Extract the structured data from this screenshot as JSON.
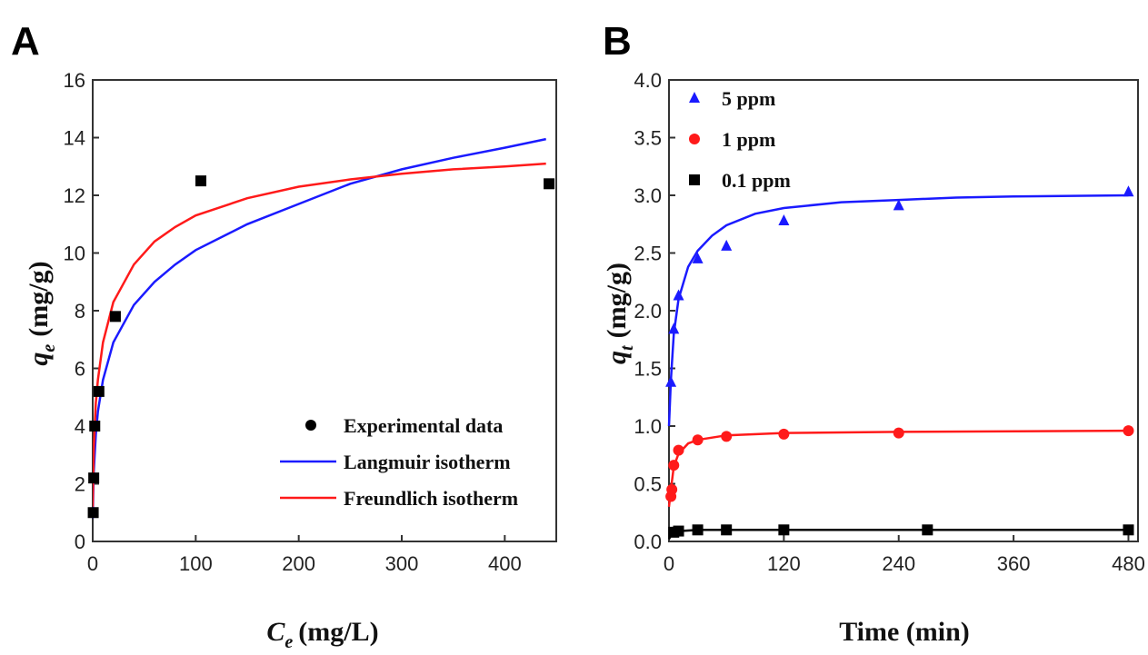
{
  "panel_a": {
    "letter": "A",
    "ylabel_sym": "q",
    "ylabel_sub": "e",
    "ylabel_unit": "(mg/g)",
    "xlabel_sym": "C",
    "xlabel_sub": "e",
    "xlabel_unit": "(mg/L)"
  },
  "panel_b": {
    "letter": "B",
    "ylabel_sym": "q",
    "ylabel_sub": "t",
    "ylabel_unit": "(mg/g)",
    "xlabel": "Time (min)"
  },
  "chart_data": [
    {
      "type": "scatter",
      "panel": "A",
      "xlim": [
        0,
        450
      ],
      "ylim": [
        0,
        16
      ],
      "xticks": [
        "0",
        "100",
        "200",
        "300",
        "400"
      ],
      "xtick_values": [
        0,
        100,
        200,
        300,
        400
      ],
      "yticks": [
        "0",
        "2",
        "4",
        "6",
        "8",
        "10",
        "12",
        "14",
        "16"
      ],
      "ytick_values": [
        0,
        2,
        4,
        6,
        8,
        10,
        12,
        14,
        16
      ],
      "grid": false,
      "legend_position": "bottom-right",
      "series": [
        {
          "name": "Experimental data",
          "kind": "points",
          "marker": "square",
          "color": "#000000",
          "points": [
            [
              0.5,
              1.0
            ],
            [
              1.0,
              2.2
            ],
            [
              2,
              4.0
            ],
            [
              6,
              5.2
            ],
            [
              22,
              7.8
            ],
            [
              105,
              12.5
            ],
            [
              443,
              12.4
            ]
          ]
        },
        {
          "name": "Langmuir isotherm",
          "kind": "curve",
          "color": "#1a1aff",
          "points": [
            [
              0,
              0.8
            ],
            [
              1,
              2.4
            ],
            [
              3,
              3.7
            ],
            [
              5,
              4.5
            ],
            [
              10,
              5.6
            ],
            [
              20,
              6.9
            ],
            [
              40,
              8.2
            ],
            [
              60,
              9.0
            ],
            [
              80,
              9.6
            ],
            [
              100,
              10.1
            ],
            [
              150,
              11.0
            ],
            [
              200,
              11.7
            ],
            [
              250,
              12.4
            ],
            [
              300,
              12.9
            ],
            [
              350,
              13.3
            ],
            [
              400,
              13.65
            ],
            [
              440,
              13.95
            ]
          ]
        },
        {
          "name": "Freundlich isotherm",
          "kind": "curve",
          "color": "#ff1a1a",
          "points": [
            [
              0,
              1.2
            ],
            [
              1,
              3.2
            ],
            [
              3,
              4.8
            ],
            [
              5,
              5.6
            ],
            [
              10,
              6.9
            ],
            [
              20,
              8.3
            ],
            [
              40,
              9.6
            ],
            [
              60,
              10.4
            ],
            [
              80,
              10.9
            ],
            [
              100,
              11.3
            ],
            [
              150,
              11.9
            ],
            [
              200,
              12.3
            ],
            [
              250,
              12.55
            ],
            [
              300,
              12.75
            ],
            [
              350,
              12.9
            ],
            [
              400,
              13.0
            ],
            [
              440,
              13.1
            ]
          ]
        }
      ]
    },
    {
      "type": "scatter",
      "panel": "B",
      "xlim": [
        0,
        490
      ],
      "ylim": [
        0,
        4.0
      ],
      "xticks": [
        "0",
        "120",
        "240",
        "360",
        "480"
      ],
      "xtick_values": [
        0,
        120,
        240,
        360,
        480
      ],
      "yticks": [
        "0.0",
        "0.5",
        "1.0",
        "1.5",
        "2.0",
        "2.5",
        "3.0",
        "3.5",
        "4.0"
      ],
      "ytick_values": [
        0,
        0.5,
        1.0,
        1.5,
        2.0,
        2.5,
        3.0,
        3.5,
        4.0
      ],
      "grid": false,
      "legend_position": "top-left",
      "series": [
        {
          "name": "5 ppm",
          "marker": "triangle",
          "color": "#1a1aff",
          "points": [
            [
              2,
              1.38
            ],
            [
              5,
              1.84
            ],
            [
              10,
              2.13
            ],
            [
              30,
              2.45
            ],
            [
              60,
              2.56
            ],
            [
              120,
              2.78
            ],
            [
              240,
              2.91
            ],
            [
              480,
              3.03
            ]
          ],
          "fit": [
            [
              0,
              1.0
            ],
            [
              2,
              1.4
            ],
            [
              5,
              1.8
            ],
            [
              10,
              2.1
            ],
            [
              20,
              2.38
            ],
            [
              30,
              2.52
            ],
            [
              45,
              2.65
            ],
            [
              60,
              2.74
            ],
            [
              90,
              2.84
            ],
            [
              120,
              2.89
            ],
            [
              180,
              2.94
            ],
            [
              240,
              2.96
            ],
            [
              300,
              2.98
            ],
            [
              360,
              2.99
            ],
            [
              480,
              3.0
            ]
          ]
        },
        {
          "name": "1 ppm",
          "marker": "circle",
          "color": "#ff1a1a",
          "points": [
            [
              2,
              0.39
            ],
            [
              3,
              0.45
            ],
            [
              5,
              0.66
            ],
            [
              10,
              0.79
            ],
            [
              30,
              0.88
            ],
            [
              60,
              0.91
            ],
            [
              120,
              0.93
            ],
            [
              240,
              0.94
            ],
            [
              480,
              0.96
            ]
          ],
          "fit": [
            [
              0,
              0.3
            ],
            [
              2,
              0.45
            ],
            [
              5,
              0.65
            ],
            [
              10,
              0.76
            ],
            [
              20,
              0.85
            ],
            [
              30,
              0.88
            ],
            [
              60,
              0.92
            ],
            [
              120,
              0.94
            ],
            [
              240,
              0.95
            ],
            [
              480,
              0.96
            ]
          ]
        },
        {
          "name": "0.1 ppm",
          "marker": "square",
          "color": "#000000",
          "points": [
            [
              5,
              0.08
            ],
            [
              10,
              0.09
            ],
            [
              30,
              0.1
            ],
            [
              60,
              0.1
            ],
            [
              120,
              0.1
            ],
            [
              270,
              0.1
            ],
            [
              480,
              0.1
            ]
          ],
          "fit": [
            [
              0,
              0.02
            ],
            [
              3,
              0.07
            ],
            [
              10,
              0.09
            ],
            [
              30,
              0.1
            ],
            [
              480,
              0.1
            ]
          ]
        }
      ]
    }
  ]
}
